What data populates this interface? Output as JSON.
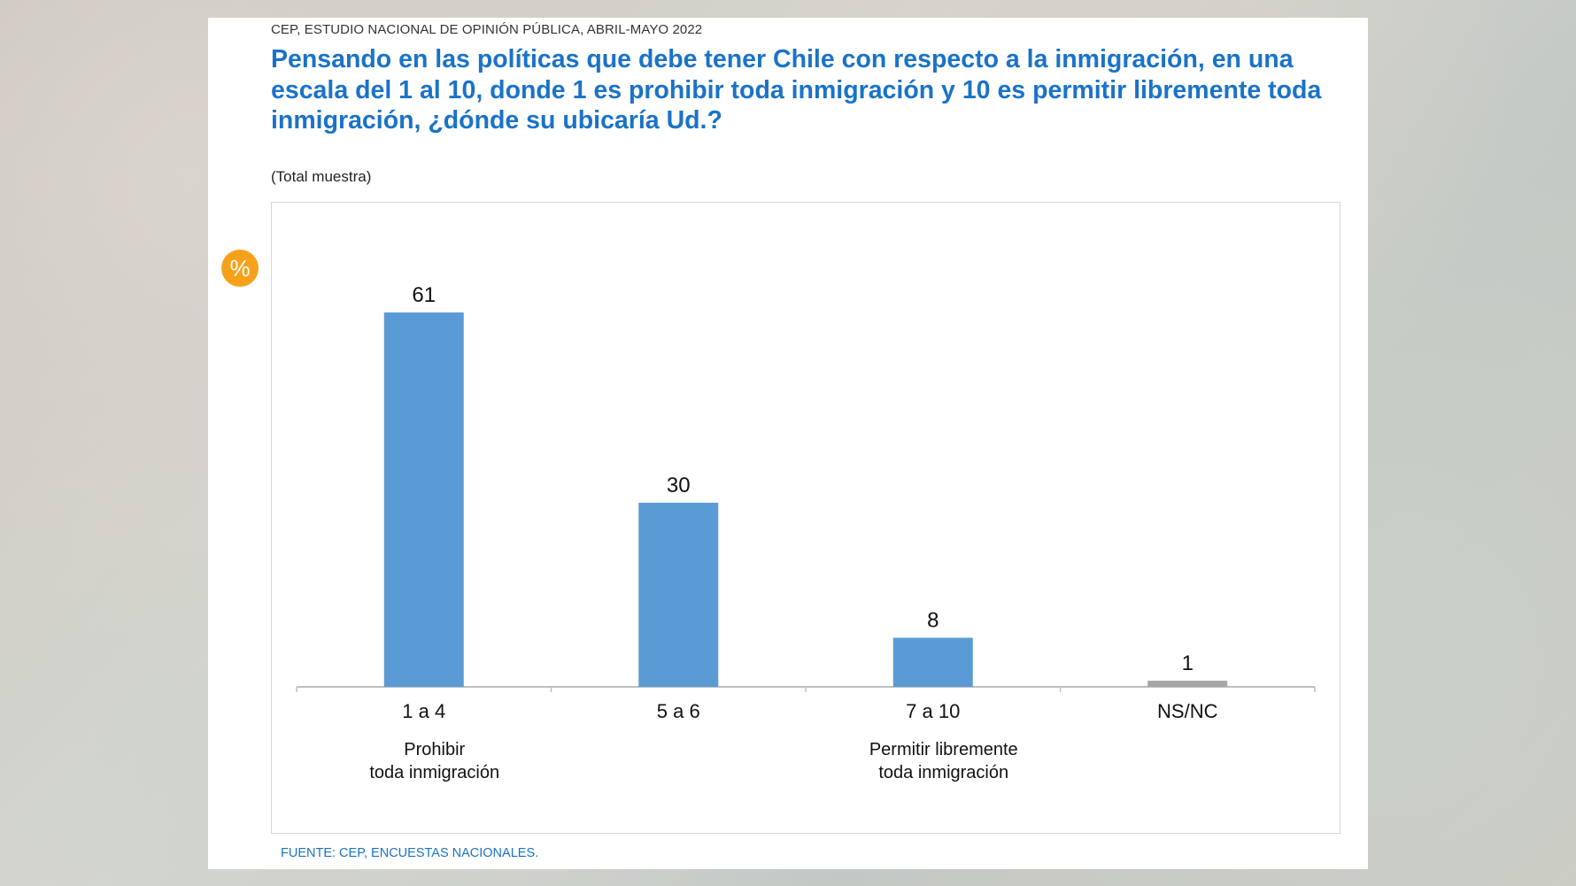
{
  "header": {
    "source_line": "CEP, ESTUDIO NACIONAL DE OPINIÓN PÚBLICA, ABRIL-MAYO 2022",
    "title": "Pensando en las políticas que debe tener Chile con respecto a la inmigración, en una escala del 1 al 10, donde 1 es prohibir toda inmigración y 10 es permitir libremente toda inmigración, ¿dónde su ubicaría Ud.?",
    "subtitle": "(Total muestra)"
  },
  "badge": {
    "symbol": "%",
    "color": "#f7a11a"
  },
  "footer": {
    "source": "FUENTE: CEP, ENCUESTAS NACIONALES."
  },
  "colors": {
    "bar": "#5b9bd5",
    "bar_nsnc": "#a6a6a6",
    "title": "#1a73c8",
    "axis": "#bfbfbf"
  },
  "chart_data": {
    "type": "bar",
    "categories": [
      "1 a 4",
      "5 a 6",
      "7 a 10",
      "NS/NC"
    ],
    "values": [
      61,
      30,
      8,
      1
    ],
    "category_sublabels": [
      [
        "Prohibir",
        "toda inmigración"
      ],
      [],
      [
        "Permitir libremente",
        "toda inmigración"
      ],
      []
    ],
    "bar_colors": [
      "#5b9bd5",
      "#5b9bd5",
      "#5b9bd5",
      "#a6a6a6"
    ],
    "ylim": [
      0,
      61
    ],
    "data_labels": true,
    "grid": false,
    "legend": "none"
  }
}
